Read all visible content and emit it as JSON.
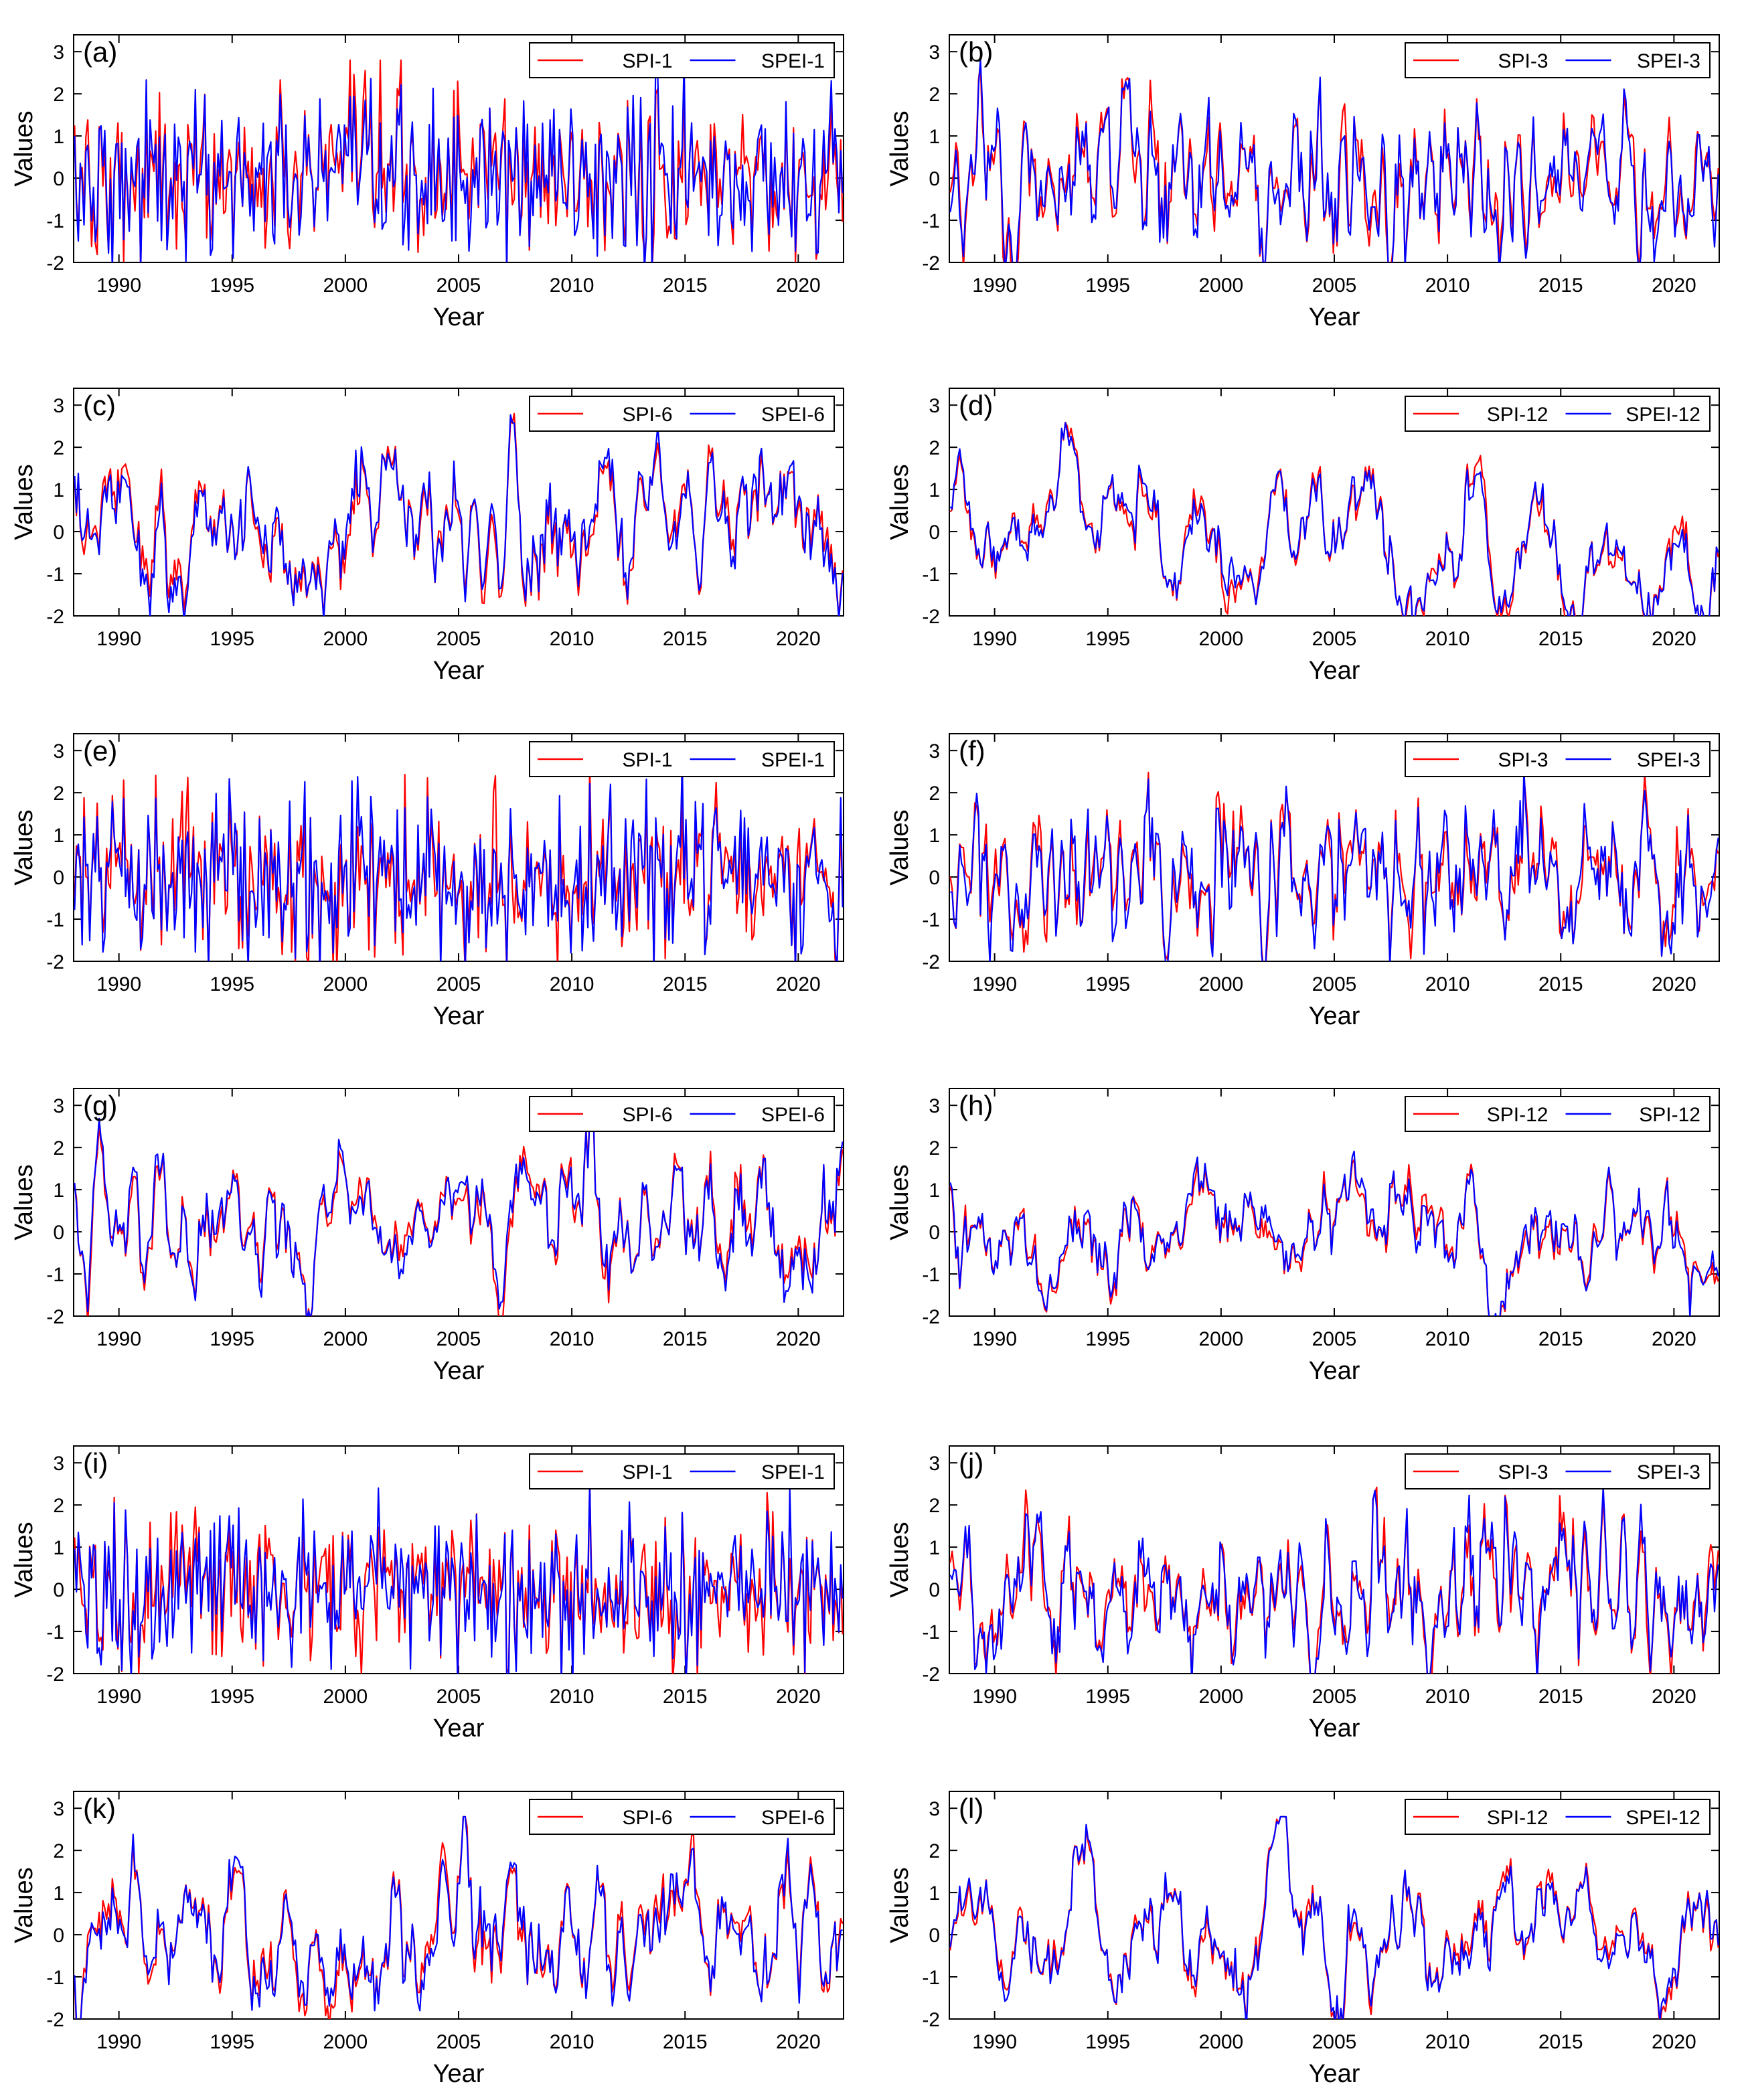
{
  "figure": {
    "xlabel": "Year",
    "ylabel": "Values",
    "xticks": [
      1990,
      1995,
      2000,
      2005,
      2010,
      2015,
      2020
    ],
    "yticks": [
      -2,
      -1,
      0,
      1,
      2,
      3
    ],
    "xlim": [
      1988,
      2022
    ],
    "ylim": [
      -2,
      3.4
    ],
    "colors": {
      "red": "#ff0000",
      "blue": "#0000ff"
    }
  },
  "chart_data": [
    {
      "panel": "(a)",
      "type": "line",
      "xlabel": "Year",
      "ylabel": "Values",
      "xlim": [
        1988,
        2022
      ],
      "ylim": [
        -2,
        3.4
      ],
      "legend": "top-right",
      "series": [
        {
          "name": "SPI-1",
          "color": "#ff0000",
          "scale": 1,
          "values": []
        },
        {
          "name": "SPEI-1",
          "color": "#0000ff",
          "scale": 1,
          "values": []
        }
      ]
    },
    {
      "panel": "(b)",
      "type": "line",
      "xlabel": "Year",
      "ylabel": "Values",
      "xlim": [
        1988,
        2022
      ],
      "ylim": [
        -2,
        3.4
      ],
      "legend": "top-right",
      "series": [
        {
          "name": "SPI-3",
          "color": "#ff0000",
          "scale": 3,
          "values": []
        },
        {
          "name": "SPEI-3",
          "color": "#0000ff",
          "scale": 3,
          "values": []
        }
      ]
    },
    {
      "panel": "(c)",
      "type": "line",
      "xlabel": "Year",
      "ylabel": "Values",
      "xlim": [
        1988,
        2022
      ],
      "ylim": [
        -2,
        3.4
      ],
      "legend": "top-right",
      "series": [
        {
          "name": "SPI-6",
          "color": "#ff0000",
          "scale": 6,
          "values": []
        },
        {
          "name": "SPEI-6",
          "color": "#0000ff",
          "scale": 6,
          "values": []
        }
      ]
    },
    {
      "panel": "(d)",
      "type": "line",
      "xlabel": "Year",
      "ylabel": "Values",
      "xlim": [
        1988,
        2022
      ],
      "ylim": [
        -2,
        3.4
      ],
      "legend": "top-right",
      "series": [
        {
          "name": "SPI-12",
          "color": "#ff0000",
          "scale": 12,
          "values": []
        },
        {
          "name": "SPEI-12",
          "color": "#0000ff",
          "scale": 12,
          "values": []
        }
      ]
    },
    {
      "panel": "(e)",
      "type": "line",
      "xlabel": "Year",
      "ylabel": "Values",
      "xlim": [
        1988,
        2022
      ],
      "ylim": [
        -2,
        3.4
      ],
      "legend": "top-right",
      "series": [
        {
          "name": "SPI-1",
          "color": "#ff0000",
          "scale": 1,
          "values": []
        },
        {
          "name": "SPEI-1",
          "color": "#0000ff",
          "scale": 1,
          "values": []
        }
      ]
    },
    {
      "panel": "(f)",
      "type": "line",
      "xlabel": "Year",
      "ylabel": "Values",
      "xlim": [
        1988,
        2022
      ],
      "ylim": [
        -2,
        3.4
      ],
      "legend": "top-right",
      "series": [
        {
          "name": "SPI-3",
          "color": "#ff0000",
          "scale": 3,
          "values": []
        },
        {
          "name": "SPEI-3",
          "color": "#0000ff",
          "scale": 3,
          "values": []
        }
      ]
    },
    {
      "panel": "(g)",
      "type": "line",
      "xlabel": "Year",
      "ylabel": "Values",
      "xlim": [
        1988,
        2022
      ],
      "ylim": [
        -2,
        3.4
      ],
      "legend": "top-right",
      "series": [
        {
          "name": "SPI-6",
          "color": "#ff0000",
          "scale": 6,
          "values": []
        },
        {
          "name": "SPEI-6",
          "color": "#0000ff",
          "scale": 6,
          "values": []
        }
      ]
    },
    {
      "panel": "(h)",
      "type": "line",
      "xlabel": "Year",
      "ylabel": "Values",
      "xlim": [
        1988,
        2022
      ],
      "ylim": [
        -2,
        3.4
      ],
      "legend": "top-right",
      "series": [
        {
          "name": "SPI-12",
          "color": "#ff0000",
          "scale": 12,
          "values": []
        },
        {
          "name": "SPI-12",
          "color": "#0000ff",
          "scale": 12,
          "values": []
        }
      ]
    },
    {
      "panel": "(i)",
      "type": "line",
      "xlabel": "Year",
      "ylabel": "Values",
      "xlim": [
        1988,
        2022
      ],
      "ylim": [
        -2,
        3.4
      ],
      "legend": "top-right",
      "series": [
        {
          "name": "SPI-1",
          "color": "#ff0000",
          "scale": 1,
          "values": []
        },
        {
          "name": "SPEI-1",
          "color": "#0000ff",
          "scale": 1,
          "values": []
        }
      ]
    },
    {
      "panel": "(j)",
      "type": "line",
      "xlabel": "Year",
      "ylabel": "Values",
      "xlim": [
        1988,
        2022
      ],
      "ylim": [
        -2,
        3.4
      ],
      "legend": "top-right",
      "series": [
        {
          "name": "SPI-3",
          "color": "#ff0000",
          "scale": 3,
          "values": []
        },
        {
          "name": "SPEI-3",
          "color": "#0000ff",
          "scale": 3,
          "values": []
        }
      ]
    },
    {
      "panel": "(k)",
      "type": "line",
      "xlabel": "Year",
      "ylabel": "Values",
      "xlim": [
        1988,
        2022
      ],
      "ylim": [
        -2,
        3.4
      ],
      "legend": "top-right",
      "series": [
        {
          "name": "SPI-6",
          "color": "#ff0000",
          "scale": 6,
          "values": []
        },
        {
          "name": "SPEI-6",
          "color": "#0000ff",
          "scale": 6,
          "values": []
        }
      ]
    },
    {
      "panel": "(l)",
      "type": "line",
      "xlabel": "Year",
      "ylabel": "Values",
      "xlim": [
        1988,
        2022
      ],
      "ylim": [
        -2,
        3.4
      ],
      "legend": "top-right",
      "series": [
        {
          "name": "SPI-12",
          "color": "#ff0000",
          "scale": 12,
          "values": []
        },
        {
          "name": "SPEI-12",
          "color": "#0000ff",
          "scale": 12,
          "values": []
        }
      ]
    }
  ]
}
